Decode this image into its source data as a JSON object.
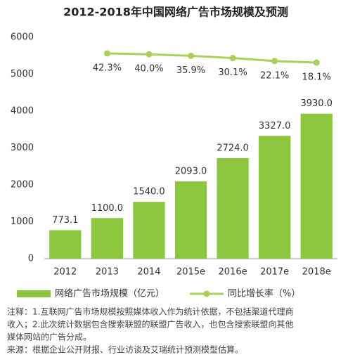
{
  "chart_data": {
    "type": "bar",
    "title": "2012-2018年中国网络广告市场规模及预测",
    "categories": [
      "2012",
      "2013",
      "2014",
      "2015e",
      "2016e",
      "2017e",
      "2018e"
    ],
    "ylim": [
      0,
      6000
    ],
    "yticks": [
      0,
      1000,
      2000,
      3000,
      4000,
      5000,
      6000
    ],
    "y2lim": [
      -500,
      85
    ],
    "grid": false,
    "series": [
      {
        "name": "网络广告市场规模（亿元）",
        "color": "#8cc63f",
        "type": "bar",
        "values": [
          773.1,
          1100.0,
          1540.0,
          2093.0,
          2724.0,
          3327.0,
          3930.0
        ],
        "value_labels": [
          "773.1",
          "1100.0",
          "1540.0",
          "2093.0",
          "2724.0",
          "3327.0",
          "3930.0"
        ]
      },
      {
        "name": "同比增长率（%）",
        "color": "#a8d05a",
        "type": "line",
        "axis": "y2",
        "values": [
          null,
          42.3,
          40.0,
          35.9,
          30.1,
          22.1,
          18.1
        ],
        "value_labels": [
          null,
          "42.3%",
          "40.0%",
          "35.9%",
          "30.1%",
          "22.1%",
          "18.1%"
        ]
      }
    ],
    "notes": [
      "注释：1.互联网广告市场规模按照媒体收入作为统计依据，不包括渠道代理商",
      "收入；2.此次统计数据包含搜索联盟的联盟广告收入，也包含搜索联盟向其他",
      "媒体网站的广告分成。",
      "来源：根据企业公开财报、行业访谈及艾瑞统计预测模型估算。"
    ]
  }
}
